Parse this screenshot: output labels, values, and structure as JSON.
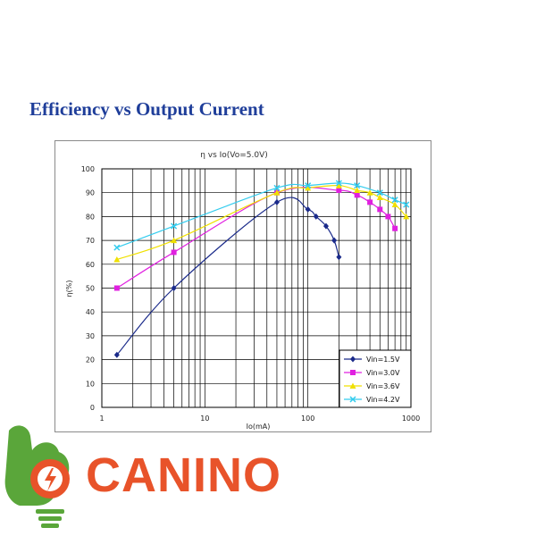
{
  "heading": "Efficiency vs Output Current",
  "brand": {
    "name": "CANINO",
    "icon": "power-plug-hand-icon",
    "green": "#5aa63a",
    "orange": "#e8532a"
  },
  "chart_data": {
    "type": "line",
    "title": "η  vs  Io(Vo=5.0V)",
    "xlabel": "Io(mA)",
    "ylabel": "η(%)",
    "xscale": "log",
    "xlim": [
      1,
      1000
    ],
    "ylim": [
      0,
      100
    ],
    "xticks": [
      1,
      10,
      100,
      1000
    ],
    "yticks": [
      0,
      10,
      20,
      30,
      40,
      50,
      60,
      70,
      80,
      90,
      100
    ],
    "grid": true,
    "legend_position": "bottom-right",
    "series": [
      {
        "name": "Vin=1.5V",
        "color": "#1a2a8a",
        "marker": "diamond",
        "x": [
          1.4,
          5,
          50,
          100,
          120,
          150,
          180,
          200
        ],
        "y": [
          22,
          50,
          86,
          83,
          80,
          76,
          70,
          63
        ]
      },
      {
        "name": "Vin=3.0V",
        "color": "#e020e0",
        "marker": "square",
        "x": [
          1.4,
          5,
          50,
          200,
          300,
          400,
          500,
          600,
          700
        ],
        "y": [
          50,
          65,
          90,
          91,
          89,
          86,
          83,
          80,
          75
        ]
      },
      {
        "name": "Vin=3.6V",
        "color": "#f0e000",
        "marker": "triangle",
        "x": [
          1.4,
          5,
          50,
          100,
          200,
          300,
          400,
          500,
          700,
          900
        ],
        "y": [
          62,
          70,
          90,
          92,
          93,
          91,
          90,
          88,
          85,
          80
        ]
      },
      {
        "name": "Vin=4.2V",
        "color": "#33ccee",
        "marker": "cross",
        "x": [
          1.4,
          5,
          50,
          100,
          200,
          300,
          500,
          700,
          900
        ],
        "y": [
          67,
          76,
          92,
          93,
          94,
          93,
          90,
          87,
          85
        ]
      }
    ]
  }
}
